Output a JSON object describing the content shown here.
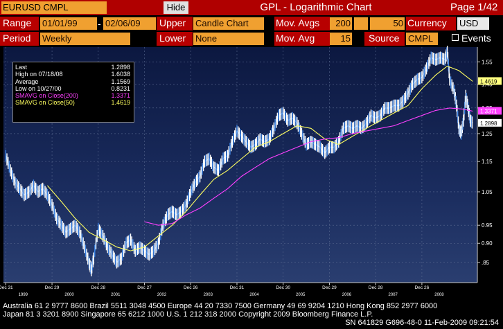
{
  "header": {
    "ticker": "EURUSD CMPL CURNCY",
    "hide_label": "Hide",
    "title": "GPL - Logarithmic Chart",
    "page": "Page 1/42"
  },
  "controls": {
    "range_label": "Range",
    "range_start": "01/01/99",
    "range_end": "02/06/09",
    "upper_label": "Upper",
    "upper_value": "Candle Chart",
    "mov_avgs_label": "Mov. Avgs",
    "mov_avgs_1": "200",
    "mov_avgs_2": "50",
    "currency_label": "Currency",
    "currency_value": "USD",
    "period_label": "Period",
    "period_value": "Weekly",
    "lower_label": "Lower",
    "lower_value": "None",
    "mov_avg_label": "Mov. Avg",
    "mov_avg_value": "15",
    "source_label": "Source",
    "source_value": "CMPL",
    "events_label": "Events"
  },
  "legend": {
    "items": [
      {
        "label": "Last",
        "value": "1.2898",
        "color": "#ffffff"
      },
      {
        "label": "High on  07/18/08",
        "value": "1.6038",
        "color": "#ffffff"
      },
      {
        "label": "Average",
        "value": "1.1569",
        "color": "#ffffff"
      },
      {
        "label": "Low on  10/27/00",
        "value": "0.8231",
        "color": "#ffffff"
      },
      {
        "label": "SMAVG on Close(200)",
        "value": "1.3371",
        "color": "#ff40ff"
      },
      {
        "label": "SMAVG on Close(50)",
        "value": "1.4619",
        "color": "#ffff60"
      }
    ]
  },
  "chart_data": {
    "type": "line",
    "y_scale": "log",
    "ylim": [
      0.8,
      1.62
    ],
    "y_ticks": [
      0.85,
      0.9,
      0.95,
      1.05,
      1.15,
      1.25,
      1.35,
      1.45,
      1.55
    ],
    "y_tick_labels": [
      ".85",
      "0.90",
      "0.95",
      "1.05",
      "1.15",
      "1.25",
      "1.35",
      "1.45",
      "1.55"
    ],
    "x_major_labels": [
      "1999",
      "2000",
      "2001",
      "2002",
      "2003",
      "2004",
      "2005",
      "2006",
      "2007",
      "2008"
    ],
    "x_minor_labels": [
      "Dec 31",
      "Dec 29",
      "Dec 28",
      "Dec 27",
      "Dec 26",
      "Dec 31",
      "Dec 30",
      "Dec 29",
      "Dec 28",
      "Dec 26"
    ],
    "price_last_label": "1.2898",
    "sma200_last_label": "1.3371",
    "sma50_last_label": "1.4619",
    "price": [
      [
        1999.0,
        1.17
      ],
      [
        1999.1,
        1.12
      ],
      [
        1999.2,
        1.08
      ],
      [
        1999.3,
        1.06
      ],
      [
        1999.4,
        1.04
      ],
      [
        1999.5,
        1.05
      ],
      [
        1999.6,
        1.07
      ],
      [
        1999.7,
        1.05
      ],
      [
        1999.8,
        1.06
      ],
      [
        1999.9,
        1.04
      ],
      [
        2000.0,
        1.01
      ],
      [
        2000.1,
        0.97
      ],
      [
        2000.2,
        0.95
      ],
      [
        2000.3,
        0.93
      ],
      [
        2000.4,
        0.94
      ],
      [
        2000.5,
        0.95
      ],
      [
        2000.6,
        0.93
      ],
      [
        2000.7,
        0.89
      ],
      [
        2000.8,
        0.85
      ],
      [
        2000.85,
        0.83
      ],
      [
        2000.9,
        0.86
      ],
      [
        2001.0,
        0.94
      ],
      [
        2001.1,
        0.92
      ],
      [
        2001.2,
        0.89
      ],
      [
        2001.3,
        0.87
      ],
      [
        2001.4,
        0.85
      ],
      [
        2001.5,
        0.86
      ],
      [
        2001.6,
        0.9
      ],
      [
        2001.7,
        0.91
      ],
      [
        2001.8,
        0.88
      ],
      [
        2001.9,
        0.89
      ],
      [
        2002.0,
        0.88
      ],
      [
        2002.1,
        0.87
      ],
      [
        2002.2,
        0.88
      ],
      [
        2002.3,
        0.9
      ],
      [
        2002.4,
        0.95
      ],
      [
        2002.5,
        0.98
      ],
      [
        2002.6,
        0.99
      ],
      [
        2002.7,
        0.98
      ],
      [
        2002.8,
        0.99
      ],
      [
        2002.9,
        1.01
      ],
      [
        2003.0,
        1.05
      ],
      [
        2003.1,
        1.08
      ],
      [
        2003.2,
        1.1
      ],
      [
        2003.3,
        1.15
      ],
      [
        2003.4,
        1.16
      ],
      [
        2003.5,
        1.13
      ],
      [
        2003.6,
        1.12
      ],
      [
        2003.7,
        1.16
      ],
      [
        2003.8,
        1.17
      ],
      [
        2003.9,
        1.22
      ],
      [
        2004.0,
        1.26
      ],
      [
        2004.1,
        1.24
      ],
      [
        2004.2,
        1.22
      ],
      [
        2004.3,
        1.2
      ],
      [
        2004.4,
        1.21
      ],
      [
        2004.5,
        1.23
      ],
      [
        2004.6,
        1.22
      ],
      [
        2004.7,
        1.23
      ],
      [
        2004.8,
        1.27
      ],
      [
        2004.9,
        1.32
      ],
      [
        2005.0,
        1.33
      ],
      [
        2005.1,
        1.3
      ],
      [
        2005.2,
        1.31
      ],
      [
        2005.3,
        1.29
      ],
      [
        2005.4,
        1.25
      ],
      [
        2005.5,
        1.21
      ],
      [
        2005.6,
        1.22
      ],
      [
        2005.7,
        1.21
      ],
      [
        2005.8,
        1.2
      ],
      [
        2005.9,
        1.18
      ],
      [
        2006.0,
        1.2
      ],
      [
        2006.1,
        1.2
      ],
      [
        2006.2,
        1.22
      ],
      [
        2006.3,
        1.27
      ],
      [
        2006.4,
        1.28
      ],
      [
        2006.5,
        1.27
      ],
      [
        2006.6,
        1.28
      ],
      [
        2006.7,
        1.27
      ],
      [
        2006.8,
        1.29
      ],
      [
        2006.9,
        1.32
      ],
      [
        2007.0,
        1.31
      ],
      [
        2007.1,
        1.32
      ],
      [
        2007.2,
        1.35
      ],
      [
        2007.3,
        1.35
      ],
      [
        2007.4,
        1.36
      ],
      [
        2007.5,
        1.36
      ],
      [
        2007.6,
        1.38
      ],
      [
        2007.7,
        1.41
      ],
      [
        2007.8,
        1.45
      ],
      [
        2007.9,
        1.47
      ],
      [
        2008.0,
        1.48
      ],
      [
        2008.1,
        1.52
      ],
      [
        2008.2,
        1.57
      ],
      [
        2008.3,
        1.56
      ],
      [
        2008.4,
        1.57
      ],
      [
        2008.5,
        1.56
      ],
      [
        2008.55,
        1.6
      ],
      [
        2008.6,
        1.47
      ],
      [
        2008.7,
        1.42
      ],
      [
        2008.75,
        1.36
      ],
      [
        2008.8,
        1.27
      ],
      [
        2008.85,
        1.25
      ],
      [
        2008.9,
        1.3
      ],
      [
        2008.95,
        1.4
      ],
      [
        2009.0,
        1.35
      ],
      [
        2009.05,
        1.3
      ],
      [
        2009.1,
        1.29
      ]
    ],
    "sma50": [
      [
        1999.9,
        1.07
      ],
      [
        2000.2,
        1.02
      ],
      [
        2000.5,
        0.97
      ],
      [
        2000.8,
        0.93
      ],
      [
        2001.1,
        0.91
      ],
      [
        2001.4,
        0.89
      ],
      [
        2001.7,
        0.88
      ],
      [
        2002.0,
        0.89
      ],
      [
        2002.3,
        0.92
      ],
      [
        2002.6,
        0.95
      ],
      [
        2002.9,
        0.99
      ],
      [
        2003.2,
        1.04
      ],
      [
        2003.5,
        1.09
      ],
      [
        2003.8,
        1.12
      ],
      [
        2004.1,
        1.16
      ],
      [
        2004.4,
        1.2
      ],
      [
        2004.7,
        1.22
      ],
      [
        2005.0,
        1.25
      ],
      [
        2005.3,
        1.28
      ],
      [
        2005.6,
        1.27
      ],
      [
        2005.9,
        1.23
      ],
      [
        2006.2,
        1.21
      ],
      [
        2006.5,
        1.24
      ],
      [
        2006.8,
        1.27
      ],
      [
        2007.1,
        1.3
      ],
      [
        2007.4,
        1.33
      ],
      [
        2007.7,
        1.36
      ],
      [
        2008.0,
        1.43
      ],
      [
        2008.3,
        1.49
      ],
      [
        2008.55,
        1.53
      ],
      [
        2008.8,
        1.51
      ],
      [
        2009.1,
        1.4619
      ]
    ],
    "sma200": [
      [
        2002.0,
        0.96
      ],
      [
        2002.3,
        0.95
      ],
      [
        2002.6,
        0.955
      ],
      [
        2002.9,
        0.98
      ],
      [
        2003.2,
        1.0
      ],
      [
        2003.5,
        1.03
      ],
      [
        2003.8,
        1.06
      ],
      [
        2004.1,
        1.1
      ],
      [
        2004.4,
        1.13
      ],
      [
        2004.7,
        1.16
      ],
      [
        2005.0,
        1.18
      ],
      [
        2005.3,
        1.2
      ],
      [
        2005.6,
        1.22
      ],
      [
        2005.9,
        1.23
      ],
      [
        2006.2,
        1.235
      ],
      [
        2006.5,
        1.25
      ],
      [
        2006.8,
        1.26
      ],
      [
        2007.1,
        1.27
      ],
      [
        2007.4,
        1.28
      ],
      [
        2007.7,
        1.3
      ],
      [
        2008.0,
        1.32
      ],
      [
        2008.3,
        1.34
      ],
      [
        2008.6,
        1.35
      ],
      [
        2008.9,
        1.345
      ],
      [
        2009.1,
        1.3371
      ]
    ]
  },
  "footer": {
    "line1": "Australia 61 2 9777 8600 Brazil 5511 3048 4500 Europe 44 20 7330 7500 Germany 49 69 9204 1210 Hong Kong 852 2977 6000",
    "line2": "Japan 81 3 3201 8900            Singapore 65 6212 1000          U.S. 1 212 318 2000              Copyright 2009 Bloomberg Finance L.P.",
    "line3": "SN 641829 G696-48-0 11-Feb-2009 09:21:54"
  },
  "colors": {
    "accent": "#f0a030",
    "title_bar": "#b00000",
    "chart_bg": "#1a2a5a",
    "price": "#4aa0ff",
    "sma50": "#ffff60",
    "sma200": "#ff40ff"
  }
}
